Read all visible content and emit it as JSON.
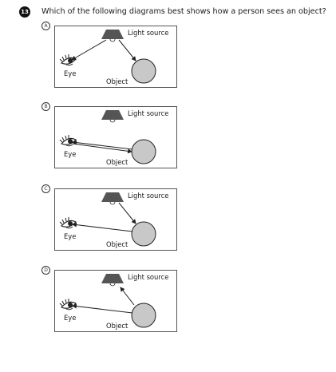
{
  "question": {
    "number": "13",
    "text": "Which of the following diagrams best shows how a person sees an object?"
  },
  "options": [
    {
      "letter": "A",
      "light_label": "Light source",
      "eye_label": "Eye",
      "object_label": "Object",
      "arrows": [
        "light-to-object",
        "light-to-eye"
      ]
    },
    {
      "letter": "B",
      "light_label": "Light source",
      "eye_label": "Eye",
      "object_label": "Object",
      "arrows": [
        "object-to-eye",
        "eye-to-object"
      ]
    },
    {
      "letter": "C",
      "light_label": "Light source",
      "eye_label": "Eye",
      "object_label": "Object",
      "arrows": [
        "light-to-object",
        "object-to-eye"
      ]
    },
    {
      "letter": "D",
      "light_label": "Light source",
      "eye_label": "Eye",
      "object_label": "Object",
      "arrows": [
        "object-to-light",
        "object-to-eye"
      ]
    }
  ],
  "colors": {
    "lamp": "#555555",
    "object_fill": "#c8c8c8",
    "line": "#222222",
    "border": "#555555"
  }
}
